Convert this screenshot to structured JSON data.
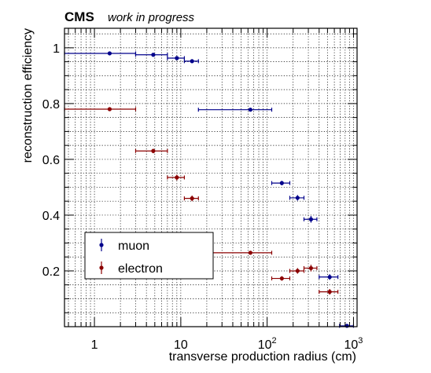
{
  "chart_data": {
    "type": "scatter",
    "header": {
      "experiment": "CMS",
      "status": "work in progress"
    },
    "xlabel": "transverse production radius (cm)",
    "ylabel": "reconstruction efficiency",
    "xscale": "log",
    "xlim": [
      0.45,
      1100
    ],
    "ylim": [
      0.0,
      1.07
    ],
    "grid": true,
    "x_ticks": [
      {
        "value": 1,
        "label": "1"
      },
      {
        "value": 10,
        "label": "10"
      },
      {
        "value": 100,
        "label": "10",
        "exponent": "2"
      },
      {
        "value": 1000,
        "label": "10",
        "exponent": "3"
      }
    ],
    "y_ticks": [
      {
        "value": 0.2,
        "label": "0.2"
      },
      {
        "value": 0.4,
        "label": "0.4"
      },
      {
        "value": 0.6,
        "label": "0.6"
      },
      {
        "value": 0.8,
        "label": "0.8"
      },
      {
        "value": 1.0,
        "label": "1"
      }
    ],
    "legend": {
      "position": "bottom-left"
    },
    "series": [
      {
        "name": "muon",
        "color": "#00008b",
        "points": [
          {
            "x": 1.5,
            "xlo": 0.45,
            "xhi": 3.0,
            "y": 0.98,
            "ylo": 0.978,
            "yhi": 0.982
          },
          {
            "x": 4.8,
            "xlo": 3.0,
            "xhi": 7.0,
            "y": 0.975,
            "ylo": 0.972,
            "yhi": 0.978
          },
          {
            "x": 9.0,
            "xlo": 7.0,
            "xhi": 11.0,
            "y": 0.963,
            "ylo": 0.958,
            "yhi": 0.968
          },
          {
            "x": 13.5,
            "xlo": 11.0,
            "xhi": 16.0,
            "y": 0.952,
            "ylo": 0.946,
            "yhi": 0.958
          },
          {
            "x": 64,
            "xlo": 16,
            "xhi": 113,
            "y": 0.778,
            "ylo": 0.772,
            "yhi": 0.784
          },
          {
            "x": 148,
            "xlo": 113,
            "xhi": 183,
            "y": 0.515,
            "ylo": 0.507,
            "yhi": 0.523
          },
          {
            "x": 225,
            "xlo": 183,
            "xhi": 267,
            "y": 0.462,
            "ylo": 0.452,
            "yhi": 0.472
          },
          {
            "x": 322,
            "xlo": 267,
            "xhi": 377,
            "y": 0.385,
            "ylo": 0.373,
            "yhi": 0.397
          },
          {
            "x": 530,
            "xlo": 400,
            "xhi": 660,
            "y": 0.178,
            "ylo": 0.168,
            "yhi": 0.188
          },
          {
            "x": 840,
            "xlo": 690,
            "xhi": 1000,
            "y": 0.003,
            "ylo": 0.0,
            "yhi": 0.007
          }
        ]
      },
      {
        "name": "electron",
        "color": "#8b0000",
        "points": [
          {
            "x": 1.5,
            "xlo": 0.45,
            "xhi": 3.0,
            "y": 0.78,
            "ylo": 0.774,
            "yhi": 0.786
          },
          {
            "x": 4.8,
            "xlo": 3.0,
            "xhi": 7.0,
            "y": 0.63,
            "ylo": 0.622,
            "yhi": 0.638
          },
          {
            "x": 9.0,
            "xlo": 7.0,
            "xhi": 11.0,
            "y": 0.535,
            "ylo": 0.525,
            "yhi": 0.545
          },
          {
            "x": 13.5,
            "xlo": 11.0,
            "xhi": 16.0,
            "y": 0.46,
            "ylo": 0.45,
            "yhi": 0.47
          },
          {
            "x": 64,
            "xlo": 16,
            "xhi": 113,
            "y": 0.265,
            "ylo": 0.259,
            "yhi": 0.271
          },
          {
            "x": 148,
            "xlo": 113,
            "xhi": 183,
            "y": 0.173,
            "ylo": 0.165,
            "yhi": 0.181
          },
          {
            "x": 225,
            "xlo": 183,
            "xhi": 267,
            "y": 0.2,
            "ylo": 0.19,
            "yhi": 0.21
          },
          {
            "x": 322,
            "xlo": 267,
            "xhi": 377,
            "y": 0.21,
            "ylo": 0.198,
            "yhi": 0.222
          },
          {
            "x": 530,
            "xlo": 400,
            "xhi": 660,
            "y": 0.125,
            "ylo": 0.115,
            "yhi": 0.135
          }
        ]
      }
    ]
  }
}
